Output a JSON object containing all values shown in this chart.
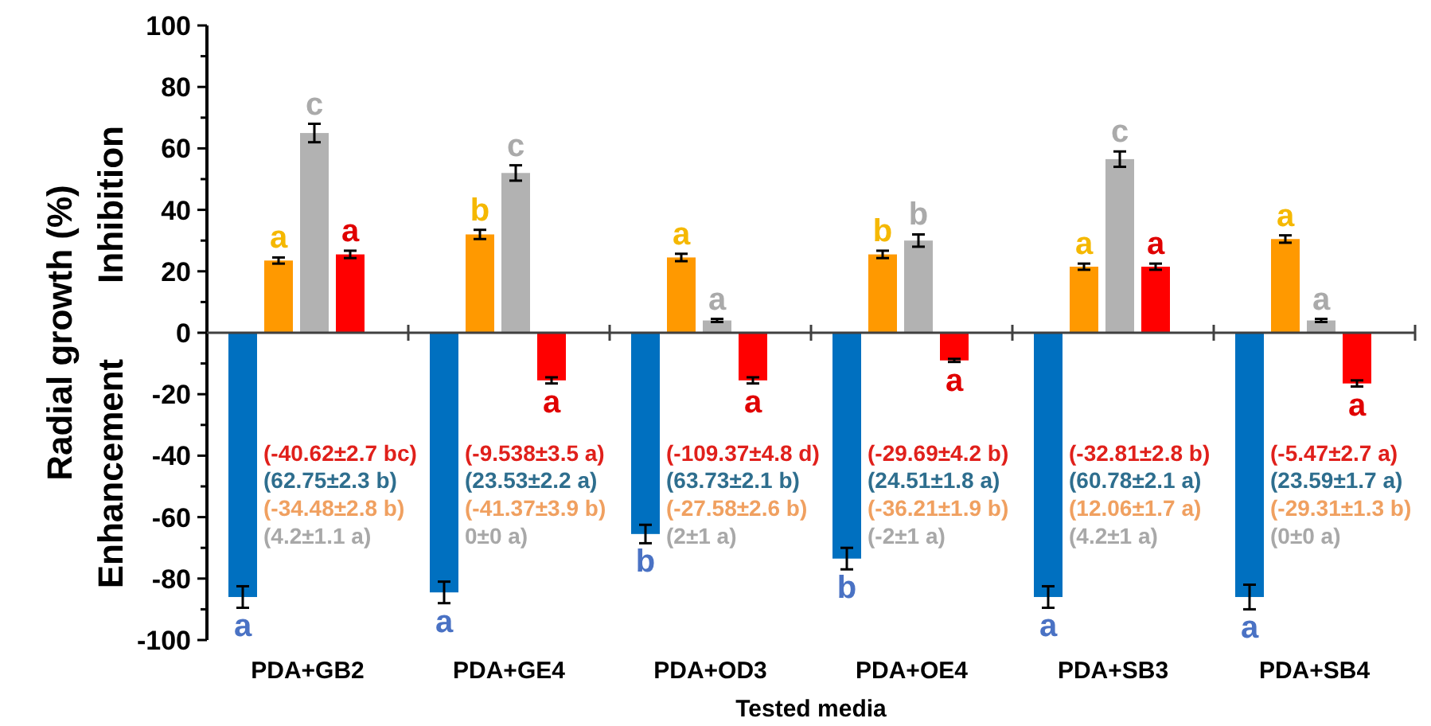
{
  "chart_data": {
    "type": "bar",
    "xlabel": "Tested media",
    "ylabel": "Radial growth (%)",
    "categories": [
      "PDA+GB2",
      "PDA+GE4",
      "PDA+OD3",
      "PDA+OE4",
      "PDA+SB3",
      "PDA+SB4"
    ],
    "series": [
      {
        "color": "#0070c0",
        "values": [
          -86,
          -84.5,
          -65.5,
          -73.5,
          -86,
          -86
        ],
        "errors": [
          3.5,
          3.5,
          3,
          3.5,
          3.5,
          4
        ],
        "value_labels": [
          "a",
          "a",
          "b",
          "b",
          "a",
          "a"
        ]
      },
      {
        "color": "#ff9900",
        "values": [
          23.5,
          32,
          24.5,
          25.5,
          21.5,
          30.5
        ],
        "errors": [
          1,
          1.5,
          1.2,
          1.2,
          1,
          1.2
        ],
        "value_labels": [
          "a",
          "b",
          "a",
          "b",
          "a",
          "a"
        ]
      },
      {
        "color": "#b2b2b2",
        "values": [
          65,
          52,
          4,
          30,
          56.5,
          4
        ],
        "errors": [
          3,
          2.5,
          0.5,
          2,
          2.5,
          0.5
        ],
        "value_labels": [
          "c",
          "c",
          "a",
          "b",
          "c",
          "a"
        ]
      },
      {
        "color": "#ff0000",
        "values": [
          25.5,
          -15.5,
          -15.5,
          -9,
          21.5,
          -16.5
        ],
        "errors": [
          1.2,
          1,
          1,
          0.5,
          1,
          1
        ],
        "value_labels": [
          "a",
          "a",
          "a",
          "a",
          "a",
          "a"
        ]
      }
    ],
    "ylim": [
      -100,
      100
    ],
    "yticks": [
      -100,
      {
        "value": -90,
        "label": null
      },
      -80,
      {
        "value": -70,
        "label": null
      },
      -60,
      {
        "value": -50,
        "label": null
      },
      -40,
      {
        "value": -30,
        "label": null
      },
      -20,
      {
        "value": -10,
        "label": null
      },
      0,
      {
        "value": 10,
        "label": null
      },
      20,
      {
        "value": 30,
        "label": null
      },
      40,
      {
        "value": 50,
        "label": null
      },
      60,
      {
        "value": 70,
        "label": null
      },
      80,
      {
        "value": 90,
        "label": null
      },
      100
    ],
    "annotations": [
      "Enhancement",
      "Inhibition",
      "(-40.62±2.7 bc)",
      "(62.75±2.3 b)",
      "(-34.48±2.8 b)",
      "(4.2±1.1 a)",
      "(-9.538±3.5 a)",
      "(23.53±2.2 a)",
      "(-41.37±3.9 b)",
      "0±0 a)",
      "(-109.37±4.8 d)",
      "(63.73±2.1 b)",
      "(-27.58±2.6 b)",
      "(2±1 a)",
      "(-29.69±4.2 b)",
      "(24.51±1.8 a)",
      "(-36.21±1.9 b)",
      "(-2±1 a)",
      "(-32.81±2.8 b)",
      "(60.78±2.1 a)",
      "(12.06±1.7 a)",
      "(4.2±1 a)",
      "(-5.47±2.7 a)",
      "(23.59±1.7 a)",
      "(-29.31±1.3 b)",
      "(0±0 a)"
    ]
  }
}
